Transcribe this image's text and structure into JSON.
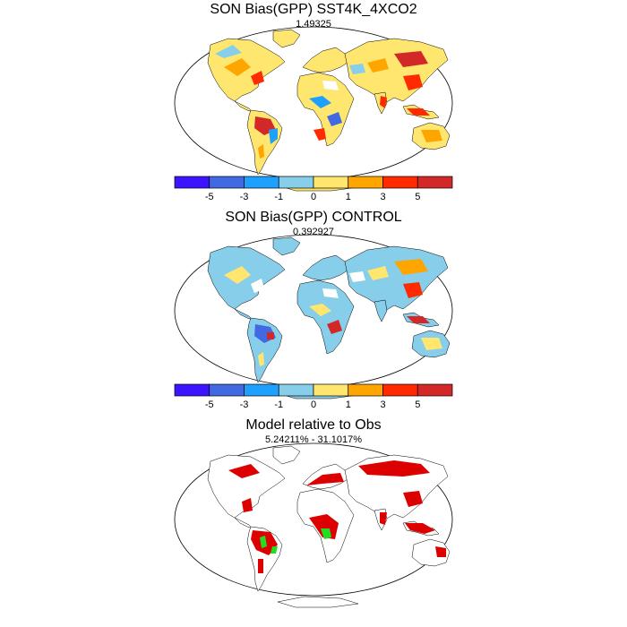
{
  "panels": [
    {
      "title": "SON Bias(GPP) SST4K_4XCO2",
      "subtitle": "1.49325"
    },
    {
      "title": "SON Bias(GPP) CONTROL",
      "subtitle": "0.392927"
    },
    {
      "title": "Model relative to Obs",
      "subtitle": "5.24211% - 31.1017%"
    }
  ],
  "colorbar": {
    "colors": [
      "#3c14ff",
      "#4169e1",
      "#1ea0ff",
      "#87ceeb",
      "#ffe66e",
      "#ffa500",
      "#ff2a00",
      "#d22828"
    ],
    "tick_labels": [
      "-5",
      "-3",
      "-1",
      "0",
      "1",
      "3",
      "5"
    ]
  },
  "ratio_colors": {
    "red": "#dd0000",
    "green": "#22dd22",
    "white": "#ffffff"
  }
}
